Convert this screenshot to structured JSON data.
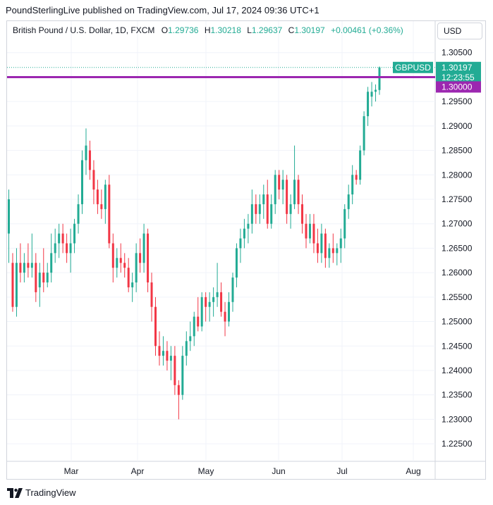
{
  "header": {
    "publisher": "PoundSterlingLive published on TradingView.com, Jul 17, 2024 09:36 UTC+1"
  },
  "legend": {
    "instrument": "British Pound / U.S. Dollar, 1D, FXCM",
    "o_label": "O",
    "o_value": "1.29736",
    "h_label": "H",
    "h_value": "1.30218",
    "l_label": "L",
    "l_value": "1.29637",
    "c_label": "C",
    "c_value": "1.30197",
    "change": "+0.00461 (+0.36%)"
  },
  "currency_button": "USD",
  "footer": {
    "brand": "TradingView"
  },
  "colors": {
    "up": "#22ab94",
    "down": "#f23645",
    "line": "#9c27b0",
    "grid": "#f0f3fa"
  },
  "chart_data": {
    "type": "candlestick",
    "title": "British Pound / U.S. Dollar, 1D, FXCM",
    "x_tick_labels": [
      "Mar",
      "Apr",
      "May",
      "Jun",
      "Jul",
      "Aug"
    ],
    "y_tick_labels": [
      "1.30500",
      "1.30000",
      "1.29500",
      "1.29000",
      "1.28500",
      "1.28000",
      "1.27500",
      "1.27000",
      "1.26500",
      "1.26000",
      "1.25500",
      "1.25000",
      "1.24500",
      "1.24000",
      "1.23500",
      "1.23000",
      "1.22500"
    ],
    "ylim": [
      1.2217,
      1.3077
    ],
    "grid": true,
    "horizontal_line": {
      "value": 1.3,
      "label": "1.30000"
    },
    "price_tag": {
      "symbol": "GBPUSD",
      "value": "1.30197",
      "countdown": "12:23:55"
    },
    "series": [
      {
        "o": 1.268,
        "h": 1.277,
        "l": 1.262,
        "c": 1.275
      },
      {
        "o": 1.262,
        "h": 1.264,
        "l": 1.252,
        "c": 1.253
      },
      {
        "o": 1.253,
        "h": 1.265,
        "l": 1.251,
        "c": 1.262
      },
      {
        "o": 1.262,
        "h": 1.266,
        "l": 1.258,
        "c": 1.26
      },
      {
        "o": 1.26,
        "h": 1.264,
        "l": 1.258,
        "c": 1.262
      },
      {
        "o": 1.262,
        "h": 1.266,
        "l": 1.259,
        "c": 1.261
      },
      {
        "o": 1.261,
        "h": 1.268,
        "l": 1.259,
        "c": 1.262
      },
      {
        "o": 1.262,
        "h": 1.264,
        "l": 1.254,
        "c": 1.256
      },
      {
        "o": 1.257,
        "h": 1.262,
        "l": 1.253,
        "c": 1.26
      },
      {
        "o": 1.26,
        "h": 1.265,
        "l": 1.256,
        "c": 1.258
      },
      {
        "o": 1.258,
        "h": 1.262,
        "l": 1.257,
        "c": 1.26
      },
      {
        "o": 1.26,
        "h": 1.268,
        "l": 1.258,
        "c": 1.264
      },
      {
        "o": 1.264,
        "h": 1.269,
        "l": 1.262,
        "c": 1.266
      },
      {
        "o": 1.266,
        "h": 1.27,
        "l": 1.263,
        "c": 1.268
      },
      {
        "o": 1.268,
        "h": 1.27,
        "l": 1.264,
        "c": 1.266
      },
      {
        "o": 1.266,
        "h": 1.268,
        "l": 1.262,
        "c": 1.264
      },
      {
        "o": 1.264,
        "h": 1.269,
        "l": 1.26,
        "c": 1.266
      },
      {
        "o": 1.266,
        "h": 1.271,
        "l": 1.264,
        "c": 1.27
      },
      {
        "o": 1.27,
        "h": 1.276,
        "l": 1.268,
        "c": 1.274
      },
      {
        "o": 1.274,
        "h": 1.285,
        "l": 1.272,
        "c": 1.283
      },
      {
        "o": 1.283,
        "h": 1.2895,
        "l": 1.28,
        "c": 1.286
      },
      {
        "o": 1.285,
        "h": 1.287,
        "l": 1.279,
        "c": 1.281
      },
      {
        "o": 1.281,
        "h": 1.283,
        "l": 1.274,
        "c": 1.277
      },
      {
        "o": 1.277,
        "h": 1.279,
        "l": 1.272,
        "c": 1.274
      },
      {
        "o": 1.274,
        "h": 1.277,
        "l": 1.271,
        "c": 1.273
      },
      {
        "o": 1.273,
        "h": 1.279,
        "l": 1.27,
        "c": 1.278
      },
      {
        "o": 1.278,
        "h": 1.28,
        "l": 1.265,
        "c": 1.266
      },
      {
        "o": 1.266,
        "h": 1.268,
        "l": 1.258,
        "c": 1.261
      },
      {
        "o": 1.261,
        "h": 1.265,
        "l": 1.259,
        "c": 1.263
      },
      {
        "o": 1.263,
        "h": 1.266,
        "l": 1.26,
        "c": 1.262
      },
      {
        "o": 1.262,
        "h": 1.264,
        "l": 1.259,
        "c": 1.261
      },
      {
        "o": 1.261,
        "h": 1.263,
        "l": 1.256,
        "c": 1.257
      },
      {
        "o": 1.257,
        "h": 1.26,
        "l": 1.254,
        "c": 1.258
      },
      {
        "o": 1.258,
        "h": 1.266,
        "l": 1.256,
        "c": 1.264
      },
      {
        "o": 1.264,
        "h": 1.267,
        "l": 1.26,
        "c": 1.262
      },
      {
        "o": 1.262,
        "h": 1.27,
        "l": 1.26,
        "c": 1.268
      },
      {
        "o": 1.268,
        "h": 1.269,
        "l": 1.256,
        "c": 1.258
      },
      {
        "o": 1.258,
        "h": 1.26,
        "l": 1.25,
        "c": 1.253
      },
      {
        "o": 1.253,
        "h": 1.255,
        "l": 1.243,
        "c": 1.245
      },
      {
        "o": 1.245,
        "h": 1.248,
        "l": 1.241,
        "c": 1.243
      },
      {
        "o": 1.243,
        "h": 1.247,
        "l": 1.241,
        "c": 1.244
      },
      {
        "o": 1.244,
        "h": 1.246,
        "l": 1.24,
        "c": 1.242
      },
      {
        "o": 1.242,
        "h": 1.245,
        "l": 1.238,
        "c": 1.243
      },
      {
        "o": 1.243,
        "h": 1.245,
        "l": 1.235,
        "c": 1.237
      },
      {
        "o": 1.237,
        "h": 1.238,
        "l": 1.23,
        "c": 1.235
      },
      {
        "o": 1.235,
        "h": 1.245,
        "l": 1.234,
        "c": 1.243
      },
      {
        "o": 1.243,
        "h": 1.248,
        "l": 1.241,
        "c": 1.246
      },
      {
        "o": 1.246,
        "h": 1.25,
        "l": 1.244,
        "c": 1.247
      },
      {
        "o": 1.247,
        "h": 1.252,
        "l": 1.245,
        "c": 1.251
      },
      {
        "o": 1.251,
        "h": 1.255,
        "l": 1.248,
        "c": 1.249
      },
      {
        "o": 1.249,
        "h": 1.256,
        "l": 1.248,
        "c": 1.255
      },
      {
        "o": 1.255,
        "h": 1.256,
        "l": 1.25,
        "c": 1.253
      },
      {
        "o": 1.253,
        "h": 1.256,
        "l": 1.25,
        "c": 1.254
      },
      {
        "o": 1.254,
        "h": 1.257,
        "l": 1.251,
        "c": 1.255
      },
      {
        "o": 1.255,
        "h": 1.262,
        "l": 1.253,
        "c": 1.256
      },
      {
        "o": 1.256,
        "h": 1.258,
        "l": 1.251,
        "c": 1.252
      },
      {
        "o": 1.252,
        "h": 1.254,
        "l": 1.247,
        "c": 1.25
      },
      {
        "o": 1.25,
        "h": 1.256,
        "l": 1.249,
        "c": 1.254
      },
      {
        "o": 1.254,
        "h": 1.26,
        "l": 1.252,
        "c": 1.259
      },
      {
        "o": 1.259,
        "h": 1.266,
        "l": 1.257,
        "c": 1.265
      },
      {
        "o": 1.265,
        "h": 1.269,
        "l": 1.262,
        "c": 1.267
      },
      {
        "o": 1.267,
        "h": 1.271,
        "l": 1.265,
        "c": 1.269
      },
      {
        "o": 1.269,
        "h": 1.272,
        "l": 1.266,
        "c": 1.27
      },
      {
        "o": 1.27,
        "h": 1.277,
        "l": 1.268,
        "c": 1.274
      },
      {
        "o": 1.274,
        "h": 1.276,
        "l": 1.27,
        "c": 1.272
      },
      {
        "o": 1.272,
        "h": 1.276,
        "l": 1.27,
        "c": 1.274
      },
      {
        "o": 1.274,
        "h": 1.278,
        "l": 1.271,
        "c": 1.276
      },
      {
        "o": 1.276,
        "h": 1.279,
        "l": 1.269,
        "c": 1.27
      },
      {
        "o": 1.27,
        "h": 1.276,
        "l": 1.269,
        "c": 1.274
      },
      {
        "o": 1.274,
        "h": 1.281,
        "l": 1.272,
        "c": 1.28
      },
      {
        "o": 1.28,
        "h": 1.281,
        "l": 1.275,
        "c": 1.277
      },
      {
        "o": 1.277,
        "h": 1.281,
        "l": 1.274,
        "c": 1.279
      },
      {
        "o": 1.279,
        "h": 1.28,
        "l": 1.27,
        "c": 1.272
      },
      {
        "o": 1.272,
        "h": 1.276,
        "l": 1.269,
        "c": 1.274
      },
      {
        "o": 1.274,
        "h": 1.286,
        "l": 1.273,
        "c": 1.279
      },
      {
        "o": 1.279,
        "h": 1.28,
        "l": 1.272,
        "c": 1.274
      },
      {
        "o": 1.274,
        "h": 1.276,
        "l": 1.268,
        "c": 1.27
      },
      {
        "o": 1.27,
        "h": 1.272,
        "l": 1.265,
        "c": 1.267
      },
      {
        "o": 1.267,
        "h": 1.272,
        "l": 1.266,
        "c": 1.27
      },
      {
        "o": 1.27,
        "h": 1.272,
        "l": 1.264,
        "c": 1.266
      },
      {
        "o": 1.266,
        "h": 1.269,
        "l": 1.262,
        "c": 1.264
      },
      {
        "o": 1.264,
        "h": 1.27,
        "l": 1.262,
        "c": 1.268
      },
      {
        "o": 1.268,
        "h": 1.269,
        "l": 1.261,
        "c": 1.263
      },
      {
        "o": 1.263,
        "h": 1.266,
        "l": 1.261,
        "c": 1.265
      },
      {
        "o": 1.265,
        "h": 1.268,
        "l": 1.262,
        "c": 1.264
      },
      {
        "o": 1.264,
        "h": 1.266,
        "l": 1.2615,
        "c": 1.265
      },
      {
        "o": 1.265,
        "h": 1.269,
        "l": 1.262,
        "c": 1.267
      },
      {
        "o": 1.267,
        "h": 1.274,
        "l": 1.265,
        "c": 1.273
      },
      {
        "o": 1.273,
        "h": 1.278,
        "l": 1.271,
        "c": 1.276
      },
      {
        "o": 1.276,
        "h": 1.282,
        "l": 1.274,
        "c": 1.28
      },
      {
        "o": 1.28,
        "h": 1.281,
        "l": 1.278,
        "c": 1.279
      },
      {
        "o": 1.279,
        "h": 1.286,
        "l": 1.278,
        "c": 1.285
      },
      {
        "o": 1.285,
        "h": 1.293,
        "l": 1.284,
        "c": 1.292
      },
      {
        "o": 1.292,
        "h": 1.298,
        "l": 1.29,
        "c": 1.297
      },
      {
        "o": 1.296,
        "h": 1.299,
        "l": 1.294,
        "c": 1.297
      },
      {
        "o": 1.297,
        "h": 1.2985,
        "l": 1.295,
        "c": 1.2974
      },
      {
        "o": 1.29736,
        "h": 1.30218,
        "l": 1.29637,
        "c": 1.30197
      }
    ]
  }
}
